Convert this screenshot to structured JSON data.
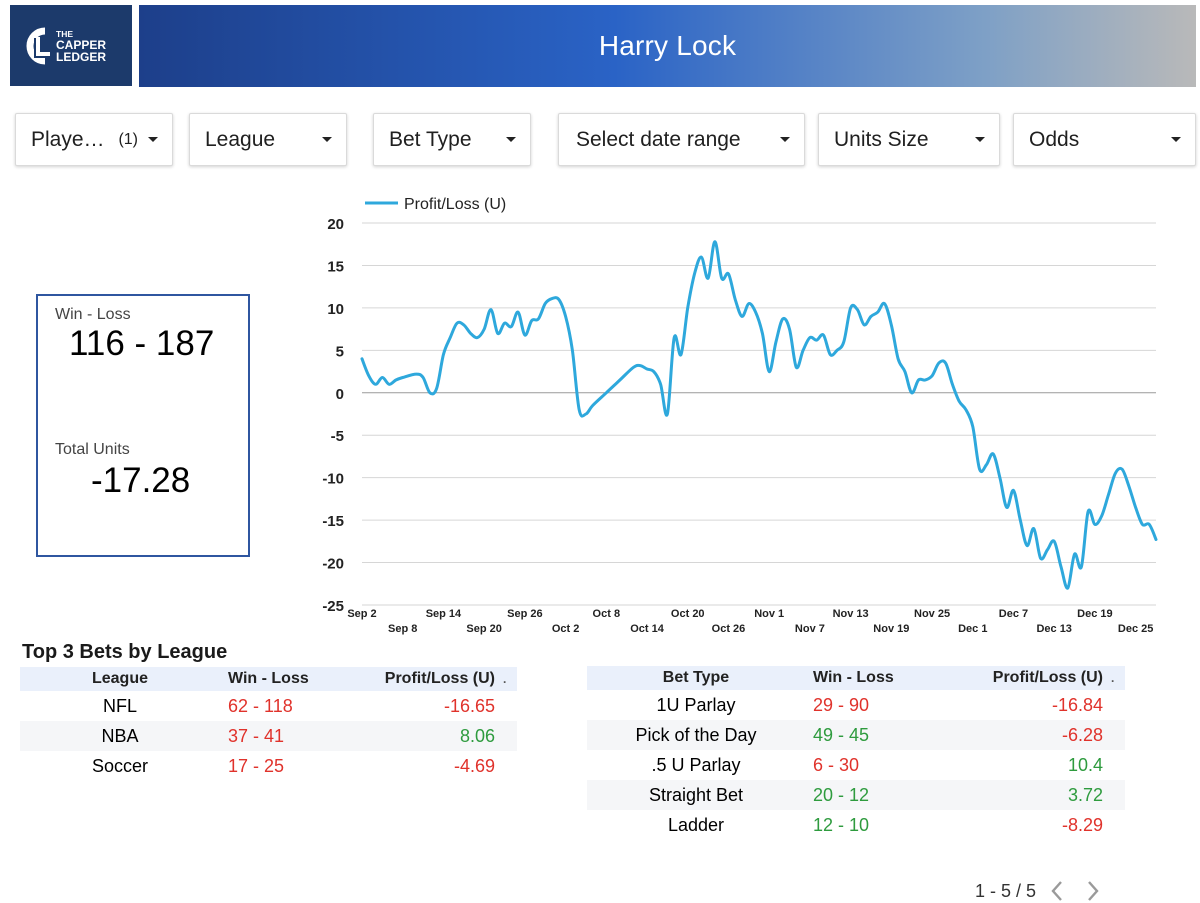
{
  "logo": {
    "line1": "THE",
    "line2": "CAPPER",
    "line3": "LEDGER",
    "mark": "CL"
  },
  "header": {
    "title": "Harry Lock"
  },
  "filters": [
    {
      "label": "Playe…",
      "count": "(1)"
    },
    {
      "label": "League",
      "count": ""
    },
    {
      "label": "Bet Type",
      "count": ""
    },
    {
      "label": "Select date range",
      "count": ""
    },
    {
      "label": "Units Size",
      "count": ""
    },
    {
      "label": "Odds",
      "count": ""
    }
  ],
  "scorecard": {
    "win_loss_label": "Win - Loss",
    "win_loss_value": "116 - 187",
    "total_units_label": "Total Units",
    "total_units_value": "-17.28"
  },
  "chart_data": {
    "type": "line",
    "title": "",
    "xlabel": "",
    "ylabel": "",
    "legend": "top-left",
    "grid": true,
    "ylim": [
      -25,
      20
    ],
    "yticks": [
      "20",
      "15",
      "10",
      "5",
      "0",
      "-5",
      "-10",
      "-15",
      "-20",
      "-25"
    ],
    "xticks_top": [
      "Sep 2",
      "Sep 14",
      "Sep 26",
      "Oct 8",
      "Oct 20",
      "Nov 1",
      "Nov 13",
      "Nov 25",
      "Dec 7",
      "Dec 19"
    ],
    "xticks_bottom": [
      "Sep 8",
      "Sep 20",
      "Oct 2",
      "Oct 14",
      "Oct 26",
      "Nov 7",
      "Nov 19",
      "Dec 1",
      "Dec 13",
      "Dec 25"
    ],
    "x_start": "2023-09-02",
    "x_end": "2023-12-28",
    "color": "#2ea8dc",
    "series": [
      {
        "name": "Profit/Loss (U)",
        "points": [
          [
            "2023-09-02",
            4
          ],
          [
            "2023-09-03",
            2
          ],
          [
            "2023-09-04",
            1
          ],
          [
            "2023-09-05",
            1.8
          ],
          [
            "2023-09-06",
            1
          ],
          [
            "2023-09-07",
            1.5
          ],
          [
            "2023-09-08",
            1.8
          ],
          [
            "2023-09-10",
            2.2
          ],
          [
            "2023-09-11",
            1.8
          ],
          [
            "2023-09-12",
            0
          ],
          [
            "2023-09-13",
            0.5
          ],
          [
            "2023-09-14",
            4.5
          ],
          [
            "2023-09-15",
            6.5
          ],
          [
            "2023-09-16",
            8.2
          ],
          [
            "2023-09-17",
            8
          ],
          [
            "2023-09-18",
            7
          ],
          [
            "2023-09-19",
            6.5
          ],
          [
            "2023-09-20",
            7.5
          ],
          [
            "2023-09-21",
            9.8
          ],
          [
            "2023-09-22",
            7
          ],
          [
            "2023-09-23",
            8.2
          ],
          [
            "2023-09-24",
            7.8
          ],
          [
            "2023-09-25",
            9.5
          ],
          [
            "2023-09-26",
            6.8
          ],
          [
            "2023-09-27",
            8.5
          ],
          [
            "2023-09-28",
            8.7
          ],
          [
            "2023-09-29",
            10.5
          ],
          [
            "2023-09-30",
            11.1
          ],
          [
            "2023-10-01",
            11
          ],
          [
            "2023-10-02",
            9
          ],
          [
            "2023-10-03",
            5
          ],
          [
            "2023-10-04",
            -2
          ],
          [
            "2023-10-05",
            -2.5
          ],
          [
            "2023-10-06",
            -1.5
          ],
          [
            "2023-10-08",
            0
          ],
          [
            "2023-10-10",
            1.5
          ],
          [
            "2023-10-12",
            3
          ],
          [
            "2023-10-13",
            3.2
          ],
          [
            "2023-10-14",
            2.8
          ],
          [
            "2023-10-15",
            2.5
          ],
          [
            "2023-10-16",
            1
          ],
          [
            "2023-10-17",
            -2.5
          ],
          [
            "2023-10-18",
            6.5
          ],
          [
            "2023-10-19",
            4.5
          ],
          [
            "2023-10-20",
            10
          ],
          [
            "2023-10-21",
            14
          ],
          [
            "2023-10-22",
            16
          ],
          [
            "2023-10-23",
            13.5
          ],
          [
            "2023-10-24",
            17.8
          ],
          [
            "2023-10-25",
            13.5
          ],
          [
            "2023-10-26",
            14
          ],
          [
            "2023-10-27",
            11
          ],
          [
            "2023-10-28",
            9
          ],
          [
            "2023-10-29",
            10.5
          ],
          [
            "2023-10-30",
            9.5
          ],
          [
            "2023-10-31",
            7
          ],
          [
            "2023-11-01",
            2.5
          ],
          [
            "2023-11-02",
            6
          ],
          [
            "2023-11-03",
            8.7
          ],
          [
            "2023-11-04",
            7.5
          ],
          [
            "2023-11-05",
            3
          ],
          [
            "2023-11-06",
            5
          ],
          [
            "2023-11-07",
            6.5
          ],
          [
            "2023-11-08",
            6.2
          ],
          [
            "2023-11-09",
            6.8
          ],
          [
            "2023-11-10",
            4.5
          ],
          [
            "2023-11-11",
            5
          ],
          [
            "2023-11-12",
            6
          ],
          [
            "2023-11-13",
            10
          ],
          [
            "2023-11-14",
            9.8
          ],
          [
            "2023-11-15",
            8
          ],
          [
            "2023-11-16",
            9
          ],
          [
            "2023-11-17",
            9.5
          ],
          [
            "2023-11-18",
            10.5
          ],
          [
            "2023-11-19",
            8
          ],
          [
            "2023-11-20",
            4
          ],
          [
            "2023-11-21",
            2.5
          ],
          [
            "2023-11-22",
            0
          ],
          [
            "2023-11-23",
            1.5
          ],
          [
            "2023-11-24",
            1.5
          ],
          [
            "2023-11-25",
            2
          ],
          [
            "2023-11-26",
            3.5
          ],
          [
            "2023-11-27",
            3.5
          ],
          [
            "2023-11-28",
            1
          ],
          [
            "2023-11-29",
            -1
          ],
          [
            "2023-11-30",
            -2
          ],
          [
            "2023-12-01",
            -4
          ],
          [
            "2023-12-02",
            -9
          ],
          [
            "2023-12-03",
            -8.5
          ],
          [
            "2023-12-04",
            -7.2
          ],
          [
            "2023-12-05",
            -10
          ],
          [
            "2023-12-06",
            -13.5
          ],
          [
            "2023-12-07",
            -11.5
          ],
          [
            "2023-12-08",
            -15
          ],
          [
            "2023-12-09",
            -18
          ],
          [
            "2023-12-10",
            -16
          ],
          [
            "2023-12-11",
            -19.5
          ],
          [
            "2023-12-12",
            -18.5
          ],
          [
            "2023-12-13",
            -17.5
          ],
          [
            "2023-12-14",
            -20.5
          ],
          [
            "2023-12-15",
            -23
          ],
          [
            "2023-12-16",
            -19
          ],
          [
            "2023-12-17",
            -20.5
          ],
          [
            "2023-12-18",
            -14
          ],
          [
            "2023-12-19",
            -15.5
          ],
          [
            "2023-12-20",
            -14.5
          ],
          [
            "2023-12-21",
            -12
          ],
          [
            "2023-12-22",
            -9.5
          ],
          [
            "2023-12-23",
            -9
          ],
          [
            "2023-12-24",
            -11
          ],
          [
            "2023-12-25",
            -13.5
          ],
          [
            "2023-12-26",
            -15.5
          ],
          [
            "2023-12-27",
            -15.5
          ],
          [
            "2023-12-28",
            -17.28
          ]
        ]
      }
    ]
  },
  "top3": {
    "title": "Top 3 Bets by League"
  },
  "league_table": {
    "headers": [
      "League",
      "Win - Loss",
      "Profit/Loss (U)"
    ],
    "rows": [
      {
        "name": "NFL",
        "wl": "62 - 118",
        "wl_sign": "neg",
        "pl": "-16.65",
        "pl_sign": "neg"
      },
      {
        "name": "NBA",
        "wl": "37 - 41",
        "wl_sign": "neg",
        "pl": "8.06",
        "pl_sign": "pos"
      },
      {
        "name": "Soccer",
        "wl": "17 - 25",
        "wl_sign": "neg",
        "pl": "-4.69",
        "pl_sign": "neg"
      }
    ]
  },
  "bettype_table": {
    "headers": [
      "Bet Type",
      "Win - Loss",
      "Profit/Loss (U)"
    ],
    "rows": [
      {
        "name": "1U Parlay",
        "wl": "29 - 90",
        "wl_sign": "neg",
        "pl": "-16.84",
        "pl_sign": "neg"
      },
      {
        "name": "Pick of the Day",
        "wl": "49 - 45",
        "wl_sign": "pos",
        "pl": "-6.28",
        "pl_sign": "neg"
      },
      {
        "name": ".5 U Parlay",
        "wl": "6 - 30",
        "wl_sign": "neg",
        "pl": "10.4",
        "pl_sign": "pos"
      },
      {
        "name": "Straight Bet",
        "wl": "20 - 12",
        "wl_sign": "pos",
        "pl": "3.72",
        "pl_sign": "pos"
      },
      {
        "name": "Ladder",
        "wl": "12 - 10",
        "wl_sign": "pos",
        "pl": "-8.29",
        "pl_sign": "neg"
      }
    ]
  },
  "pager": {
    "range": "1 - 5 / 5"
  },
  "header_marker": "."
}
